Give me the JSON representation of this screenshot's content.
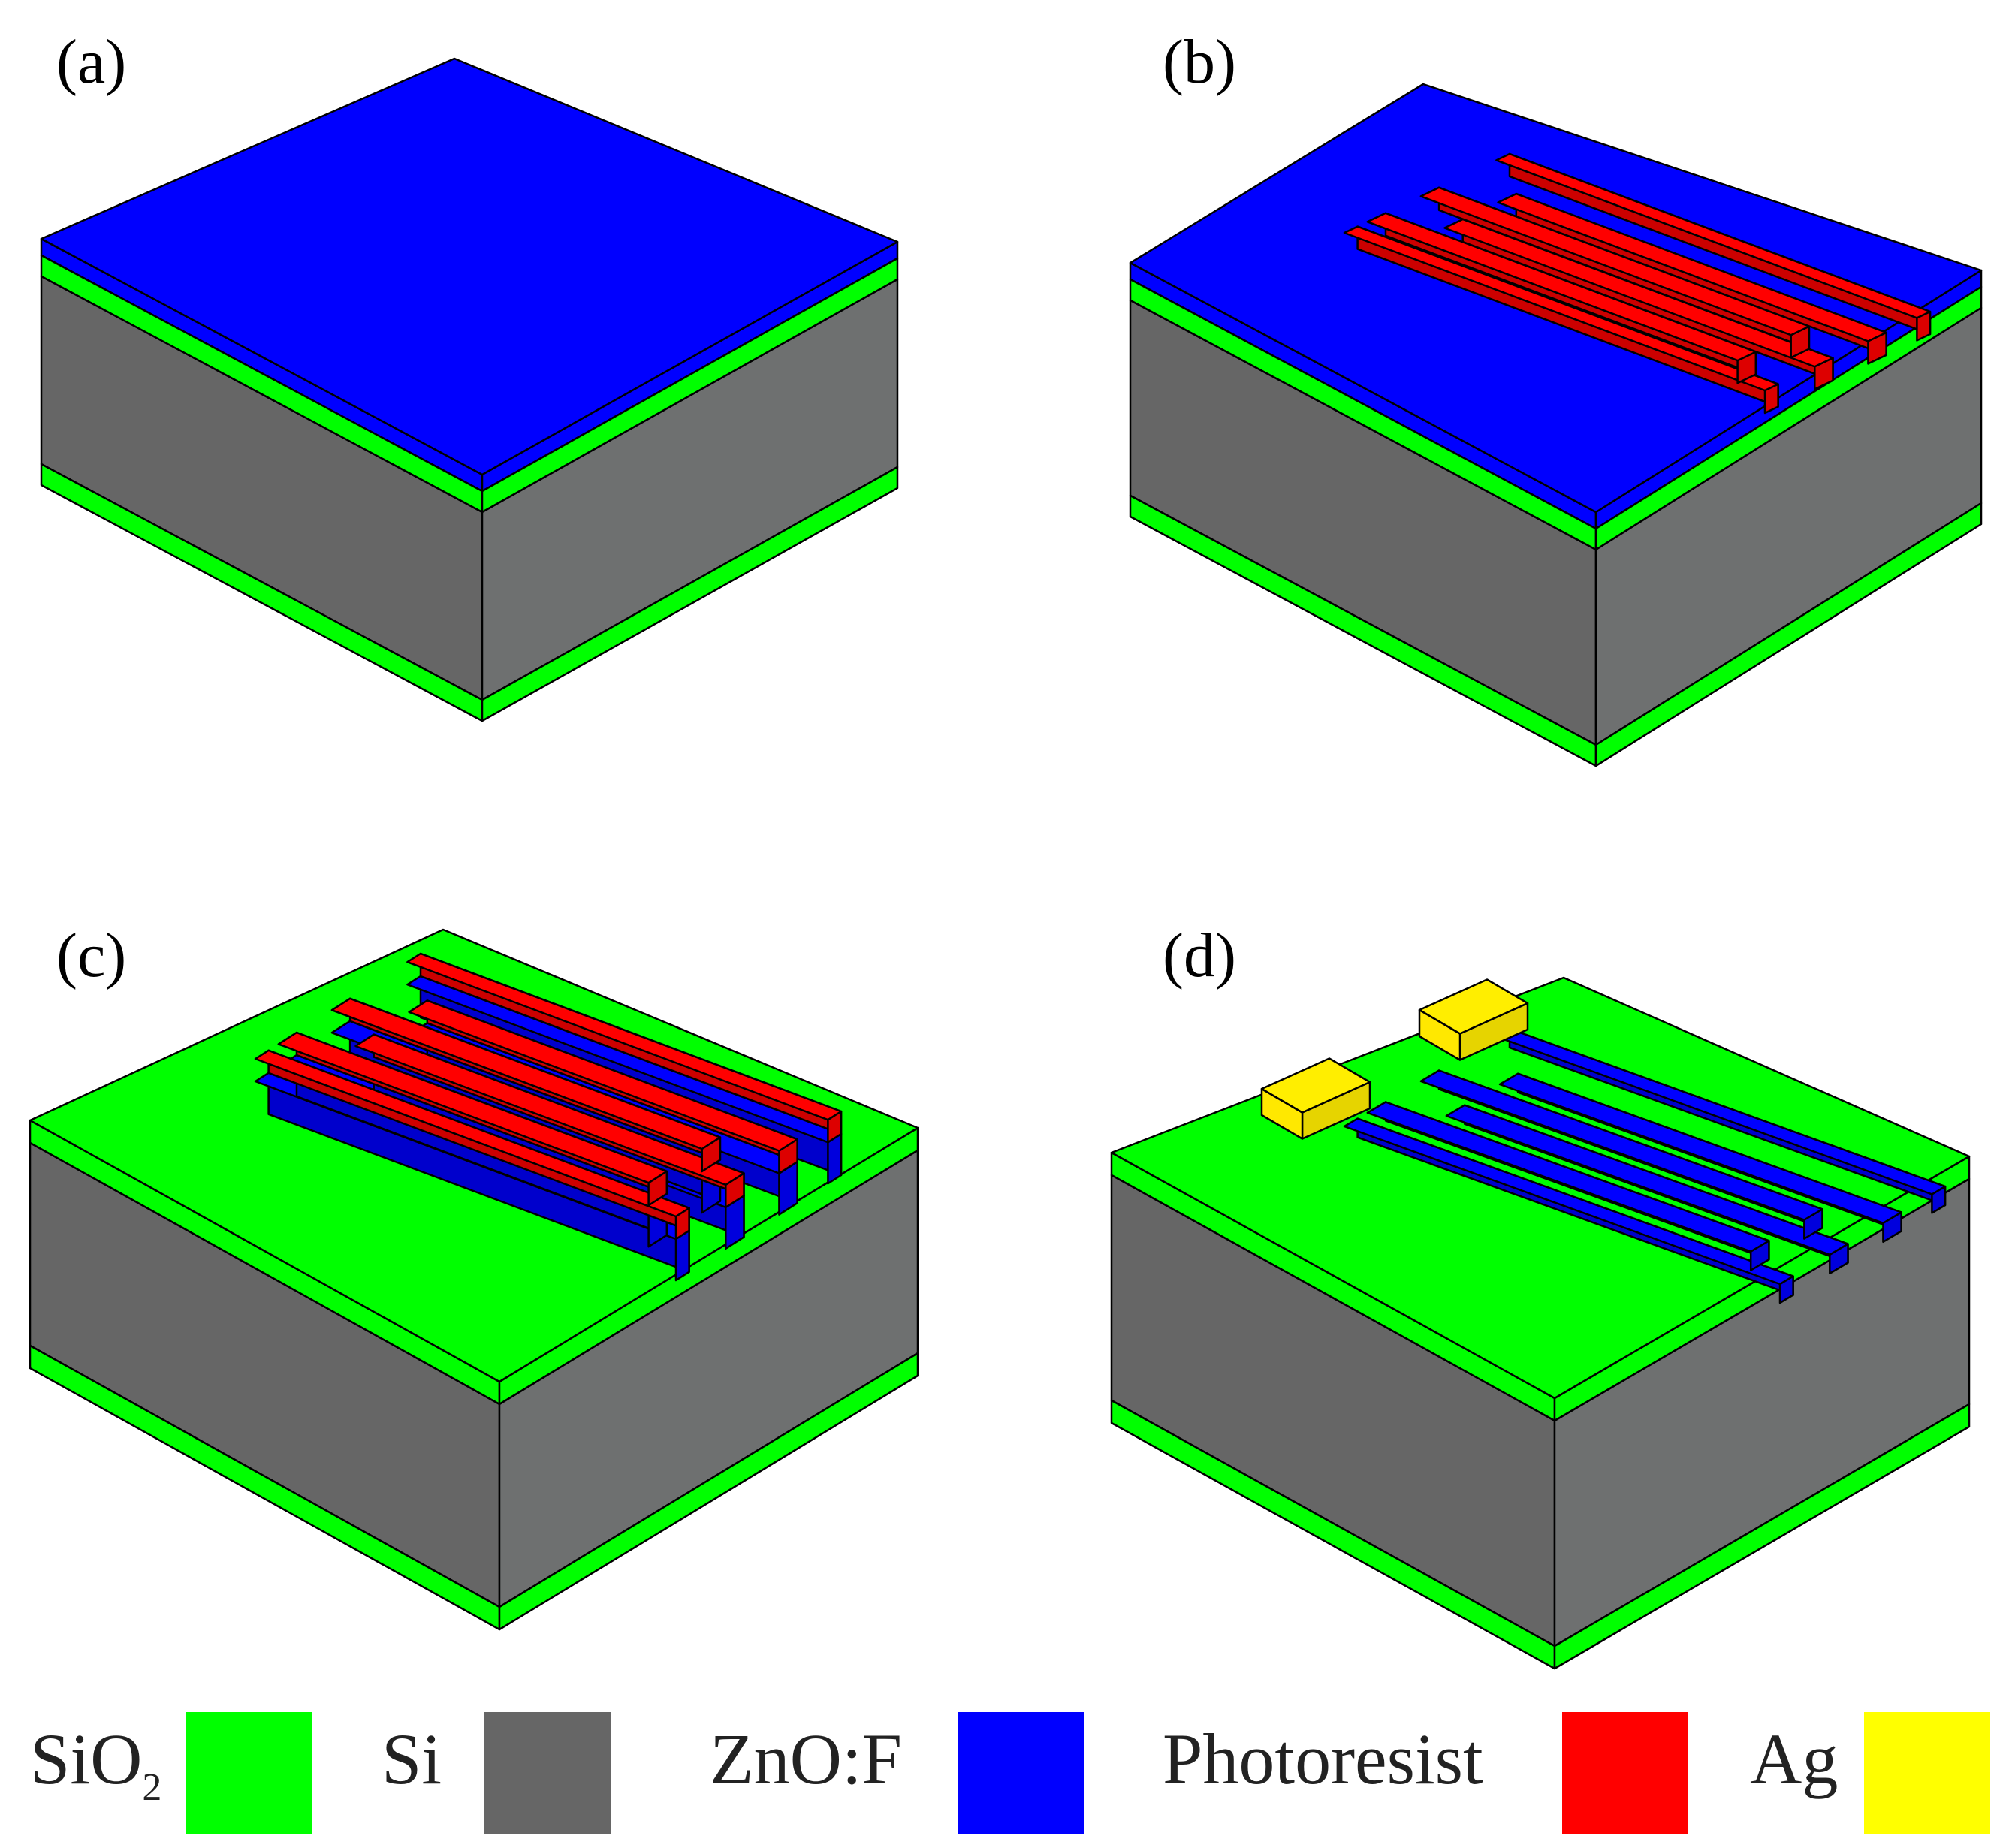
{
  "panels": [
    {
      "label": "(a)",
      "layers": [
        "SiO2",
        "Si",
        "SiO2",
        "ZnO:F"
      ],
      "top": "ZnO:F",
      "features": []
    },
    {
      "label": "(b)",
      "layers": [
        "SiO2",
        "Si",
        "SiO2",
        "ZnO:F"
      ],
      "top": "ZnO:F",
      "features": [
        "Photoresist"
      ]
    },
    {
      "label": "(c)",
      "layers": [
        "SiO2",
        "Si",
        "SiO2"
      ],
      "top": "SiO2",
      "features": [
        "ZnO:F",
        "Photoresist"
      ]
    },
    {
      "label": "(d)",
      "layers": [
        "SiO2",
        "Si",
        "SiO2"
      ],
      "top": "SiO2",
      "features": [
        "ZnO:F",
        "Ag"
      ]
    }
  ],
  "legend": [
    {
      "label": "SiO",
      "subscript": "2",
      "color": "#00ff00"
    },
    {
      "label": "Si",
      "subscript": "",
      "color": "#666666"
    },
    {
      "label": "ZnO:F",
      "subscript": "",
      "color": "#0000ff"
    },
    {
      "label": "Photoresist",
      "subscript": "",
      "color": "#ff0000"
    },
    {
      "label": "Ag",
      "subscript": "",
      "color": "#ffff00"
    }
  ],
  "colors": {
    "sio2": "#00ff00",
    "si_left": "#666666",
    "si_right": "#6e7070",
    "zno": "#0000ff",
    "photoresist": "#ff0000",
    "ag": "#ffee00"
  }
}
